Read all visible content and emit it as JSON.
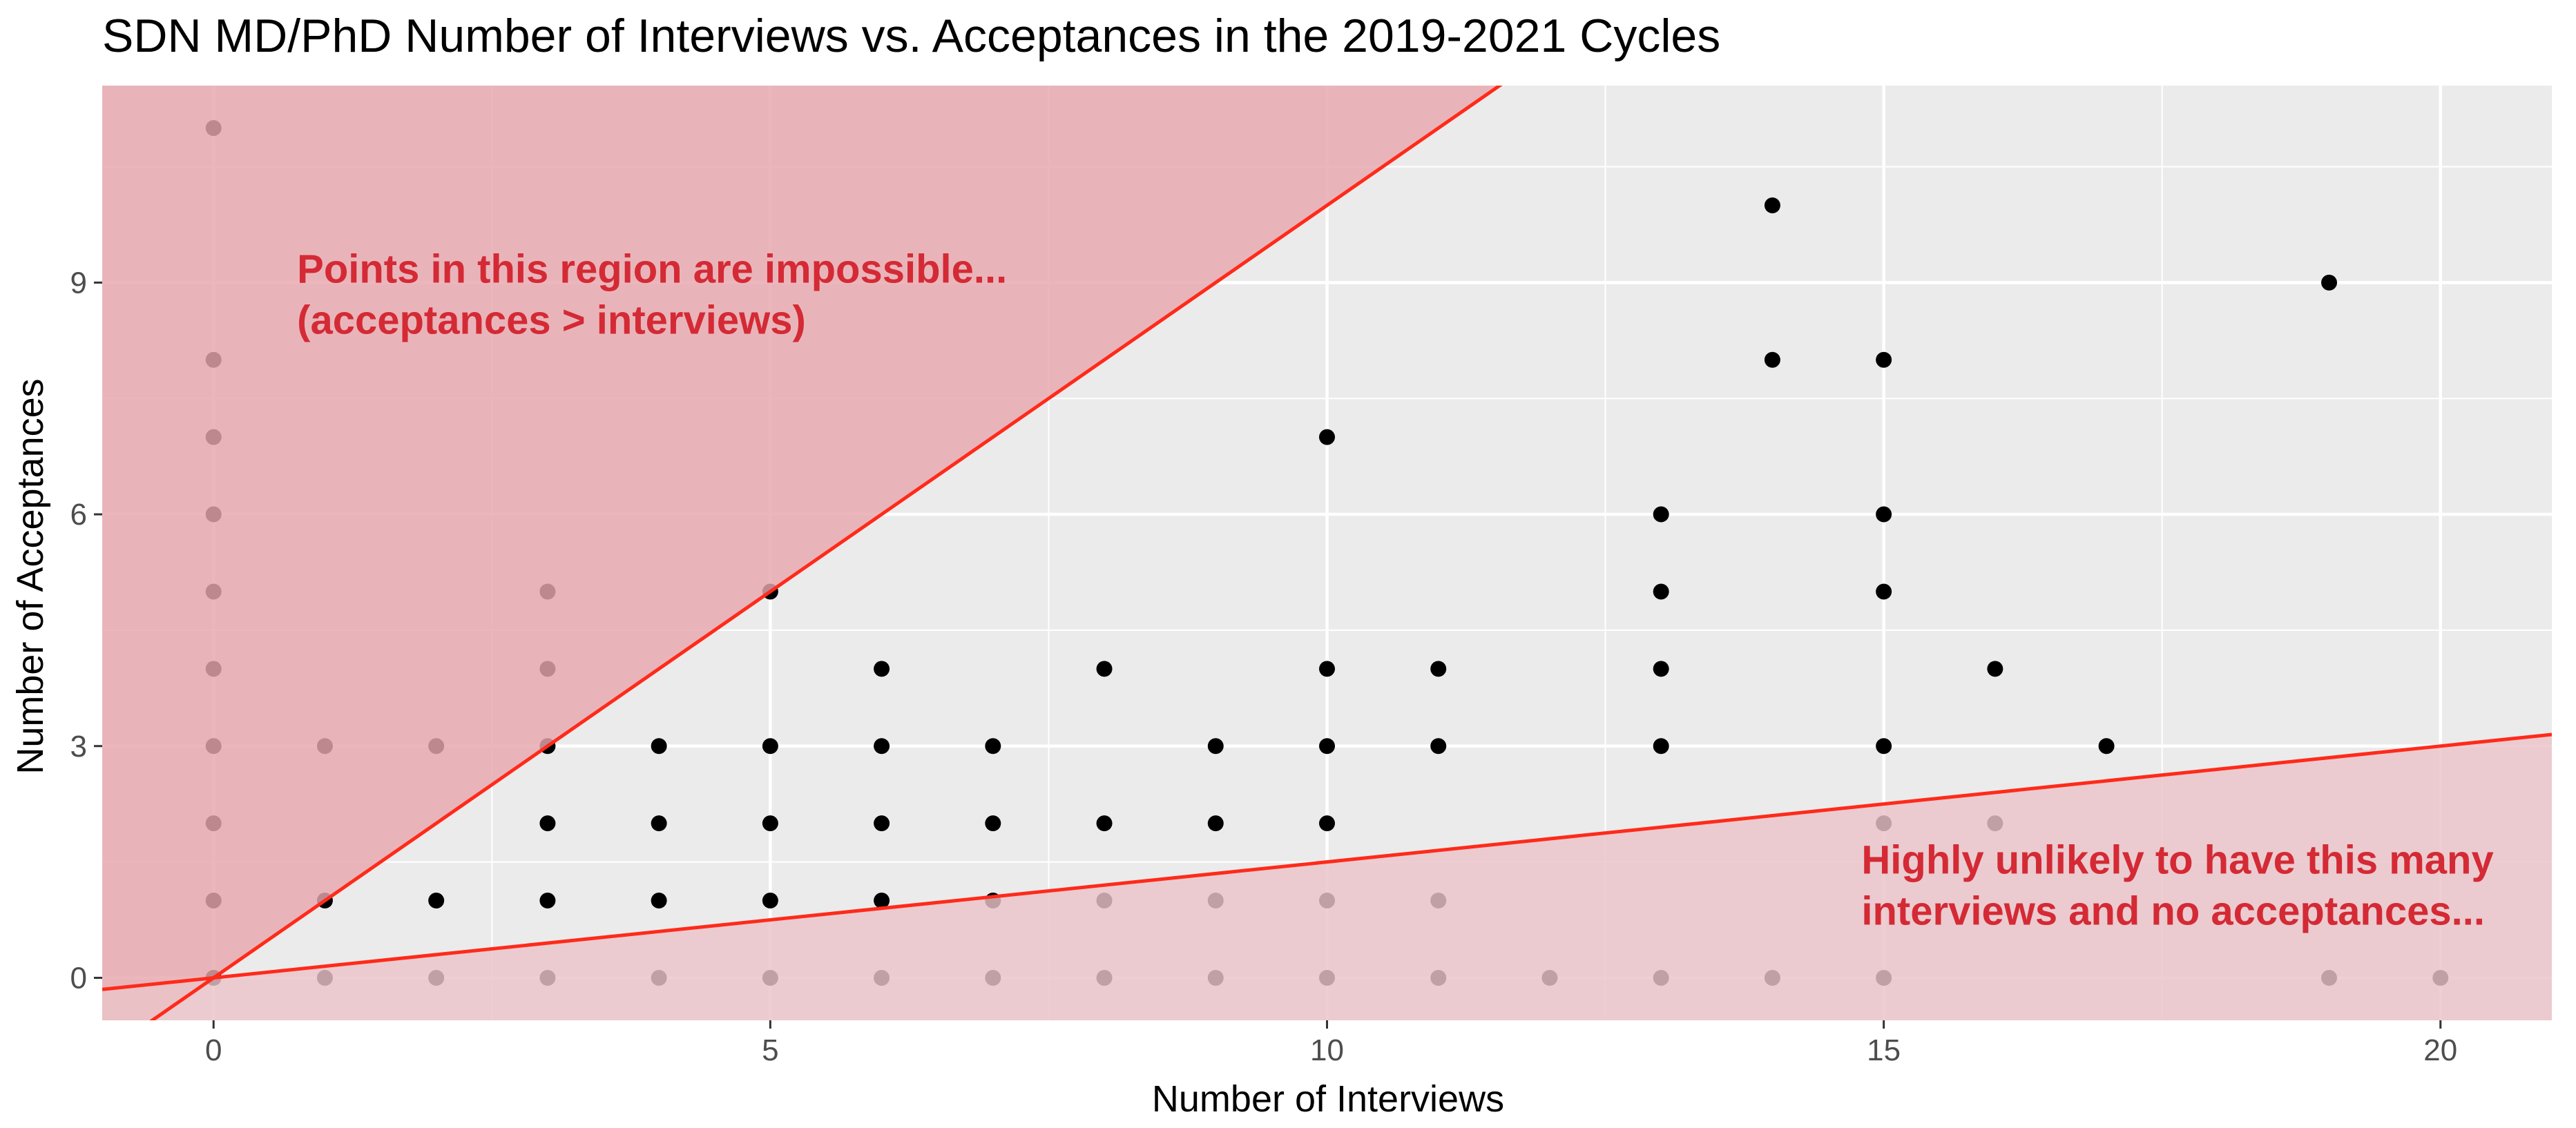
{
  "chart_data": {
    "type": "scatter",
    "title": "SDN MD/PhD Number of Interviews vs. Acceptances in the 2019-2021 Cycles",
    "xlabel": "Number of Interviews",
    "ylabel": "Number of Acceptances",
    "xlim": [
      -1,
      21
    ],
    "ylim": [
      -0.55,
      11.55
    ],
    "x_ticks": [
      0,
      5,
      10,
      15,
      20
    ],
    "y_ticks": [
      0,
      3,
      6,
      9
    ],
    "grid": true,
    "colors": {
      "panel": "#ebebeb",
      "grid": "#ffffff",
      "point": "#000000",
      "line": "#ff2a1a",
      "region_upper": "#e8a7ad",
      "region_lower": "#eac3c8",
      "annotation": "#d42a35"
    },
    "reference_lines": [
      {
        "name": "y = x",
        "slope": 1,
        "intercept": 0
      },
      {
        "name": "y = 0.15x",
        "slope": 0.15,
        "intercept": 0
      }
    ],
    "points": [
      [
        0,
        0
      ],
      [
        0,
        1
      ],
      [
        0,
        2
      ],
      [
        0,
        3
      ],
      [
        0,
        4
      ],
      [
        0,
        5
      ],
      [
        0,
        6
      ],
      [
        0,
        7
      ],
      [
        0,
        8
      ],
      [
        0,
        11
      ],
      [
        1,
        0
      ],
      [
        1,
        1
      ],
      [
        1,
        3
      ],
      [
        2,
        0
      ],
      [
        2,
        1
      ],
      [
        2,
        3
      ],
      [
        3,
        0
      ],
      [
        3,
        1
      ],
      [
        3,
        2
      ],
      [
        3,
        3
      ],
      [
        3,
        4
      ],
      [
        3,
        5
      ],
      [
        4,
        0
      ],
      [
        4,
        1
      ],
      [
        4,
        2
      ],
      [
        4,
        3
      ],
      [
        5,
        0
      ],
      [
        5,
        1
      ],
      [
        5,
        2
      ],
      [
        5,
        3
      ],
      [
        5,
        5
      ],
      [
        6,
        0
      ],
      [
        6,
        1
      ],
      [
        6,
        2
      ],
      [
        6,
        3
      ],
      [
        6,
        4
      ],
      [
        7,
        0
      ],
      [
        7,
        1
      ],
      [
        7,
        2
      ],
      [
        7,
        3
      ],
      [
        8,
        0
      ],
      [
        8,
        1
      ],
      [
        8,
        2
      ],
      [
        8,
        4
      ],
      [
        9,
        0
      ],
      [
        9,
        1
      ],
      [
        9,
        2
      ],
      [
        9,
        3
      ],
      [
        10,
        0
      ],
      [
        10,
        1
      ],
      [
        10,
        2
      ],
      [
        10,
        3
      ],
      [
        10,
        4
      ],
      [
        10,
        7
      ],
      [
        11,
        0
      ],
      [
        11,
        1
      ],
      [
        11,
        3
      ],
      [
        11,
        4
      ],
      [
        12,
        0
      ],
      [
        13,
        0
      ],
      [
        13,
        3
      ],
      [
        13,
        4
      ],
      [
        13,
        5
      ],
      [
        13,
        6
      ],
      [
        14,
        0
      ],
      [
        14,
        8
      ],
      [
        14,
        10
      ],
      [
        15,
        0
      ],
      [
        15,
        2
      ],
      [
        15,
        3
      ],
      [
        15,
        5
      ],
      [
        15,
        6
      ],
      [
        15,
        8
      ],
      [
        16,
        2
      ],
      [
        16,
        4
      ],
      [
        17,
        3
      ],
      [
        19,
        0
      ],
      [
        19,
        9
      ],
      [
        20,
        0
      ]
    ],
    "annotations": [
      {
        "lines": [
          "Points in this region are impossible...",
          "(acceptances > interviews)"
        ],
        "x": 0.75,
        "y": 9
      },
      {
        "lines": [
          "Highly unlikely to have this many",
          "interviews and no acceptances..."
        ],
        "x": 14.8,
        "y": 1.35
      }
    ]
  }
}
